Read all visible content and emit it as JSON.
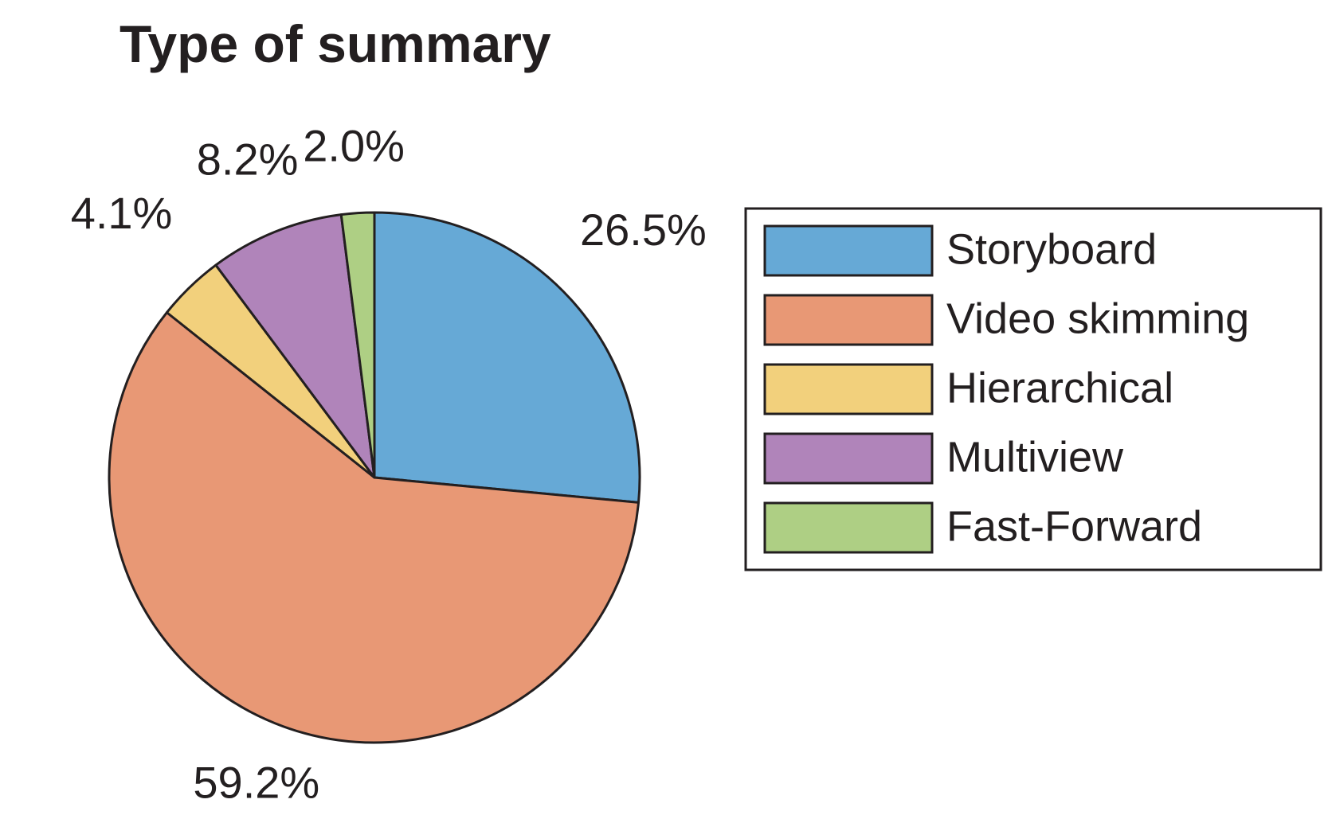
{
  "chart_data": {
    "type": "pie",
    "title": "Type of summary",
    "categories": [
      "Storyboard",
      "Video skimming",
      "Hierarchical",
      "Multiview",
      "Fast-Forward"
    ],
    "values": [
      26.5,
      59.2,
      4.1,
      8.2,
      2.0
    ],
    "value_labels": [
      "26.5%",
      "59.2%",
      "4.1%",
      "8.2%",
      "2.0%"
    ],
    "colors": [
      "#66a9d6",
      "#e89875",
      "#f2d07c",
      "#b084ba",
      "#aecf84"
    ],
    "start_angle": "12 o'clock",
    "direction": "clockwise",
    "legend_position": "right"
  }
}
